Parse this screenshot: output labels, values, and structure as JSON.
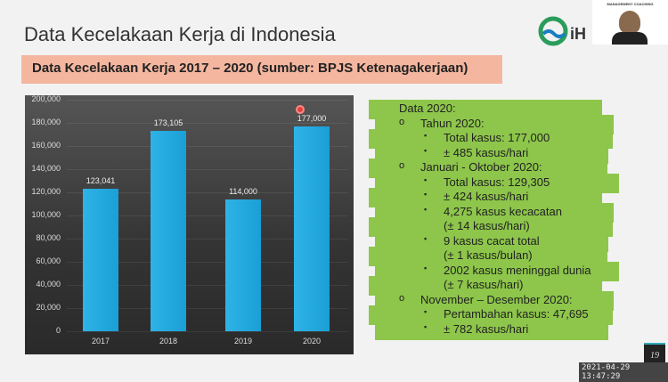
{
  "slide": {
    "title": "Data Kecelakaan Kerja di Indonesia",
    "subtitle": "Data Kecelakaan Kerja 2017 – 2020 (sumber: BPJS Ketenagakerjaan)",
    "page_number": "19",
    "logo_text": "iH",
    "camera_banner": "MANAGEMENT COACHING"
  },
  "timestamp": "2021-04-29 13:47:29",
  "chart_data": {
    "type": "bar",
    "categories": [
      "2017",
      "2018",
      "2019",
      "2020"
    ],
    "values": [
      123041,
      173105,
      114000,
      177000
    ],
    "data_labels": [
      "123,041",
      "173,105",
      "114,000",
      "177,000"
    ],
    "ylim": [
      0,
      200000
    ],
    "yticks": [
      "0",
      "20,000",
      "40,000",
      "60,000",
      "80,000",
      "100,000",
      "120,000",
      "140,000",
      "160,000",
      "180,000",
      "200,000"
    ],
    "bar_color": "#29ade3",
    "background": "#3a3a3a"
  },
  "notes": [
    {
      "level": 0,
      "text": "Data 2020:"
    },
    {
      "level": 1,
      "bullet": "o",
      "text": "Tahun 2020:"
    },
    {
      "level": 2,
      "bullet": "▪",
      "text": "Total kasus: 177,000"
    },
    {
      "level": 2,
      "bullet": "▪",
      "text": "± 485 kasus/hari"
    },
    {
      "level": 1,
      "bullet": "o",
      "text": "Januari - Oktober 2020:"
    },
    {
      "level": 2,
      "bullet": "▪",
      "text": "Total kasus: 129,305"
    },
    {
      "level": 2,
      "bullet": "▪",
      "text": "± 424 kasus/hari"
    },
    {
      "level": 2,
      "bullet": "▪",
      "text": "4,275 kasus kecacatan"
    },
    {
      "level": 3,
      "text": "(± 14 kasus/hari)"
    },
    {
      "level": 2,
      "bullet": "▪",
      "text": "9 kasus cacat total"
    },
    {
      "level": 3,
      "text": "(± 1 kasus/bulan)"
    },
    {
      "level": 2,
      "bullet": "▪",
      "text": "2002 kasus meninggal dunia"
    },
    {
      "level": 3,
      "text": "(± 7 kasus/hari)"
    },
    {
      "level": 1,
      "bullet": "o",
      "text": "November – Desember 2020:"
    },
    {
      "level": 2,
      "bullet": "▪",
      "text": "Pertambahan kasus: 47,695"
    },
    {
      "level": 2,
      "bullet": "▪",
      "text": "± 782 kasus/hari"
    }
  ]
}
